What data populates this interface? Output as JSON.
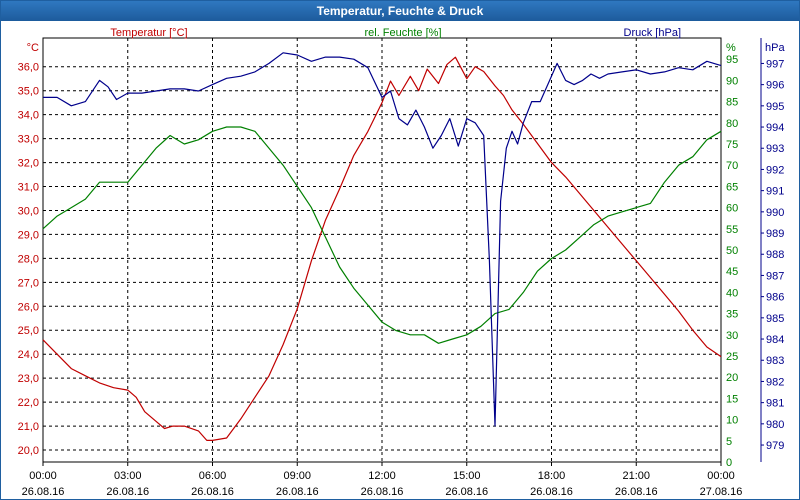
{
  "window": {
    "title": "Temperatur, Feuchte & Druck"
  },
  "chart_data": {
    "type": "line",
    "title": "Temperatur, Feuchte & Druck",
    "grid": true,
    "x_labels": [
      {
        "time": "00:00",
        "date": "26.08.16"
      },
      {
        "time": "03:00",
        "date": "26.08.16"
      },
      {
        "time": "06:00",
        "date": "26.08.16"
      },
      {
        "time": "09:00",
        "date": "26.08.16"
      },
      {
        "time": "12:00",
        "date": "26.08.16"
      },
      {
        "time": "15:00",
        "date": "26.08.16"
      },
      {
        "time": "18:00",
        "date": "26.08.16"
      },
      {
        "time": "21:00",
        "date": "26.08.16"
      },
      {
        "time": "00:00",
        "date": "27.08.16"
      }
    ],
    "xlim": [
      0,
      24
    ],
    "axes": {
      "temperature": {
        "unit": "°C",
        "label": "Temperatur [°C]",
        "color": "#c00000",
        "ylim": [
          19.5,
          37.2
        ],
        "ticks": [
          "20,0",
          "21,0",
          "22,0",
          "23,0",
          "24,0",
          "25,0",
          "26,0",
          "27,0",
          "28,0",
          "29,0",
          "30,0",
          "31,0",
          "32,0",
          "33,0",
          "34,0",
          "35,0",
          "36,0"
        ]
      },
      "humidity": {
        "unit": "%",
        "label": "rel. Feuchte [%]",
        "color": "#008000",
        "ylim": [
          0,
          100
        ],
        "ticks": [
          "0",
          "5",
          "10",
          "15",
          "20",
          "25",
          "30",
          "35",
          "40",
          "45",
          "50",
          "55",
          "60",
          "65",
          "70",
          "75",
          "80",
          "85",
          "90",
          "95"
        ]
      },
      "pressure": {
        "unit": "hPa",
        "label": "Druck [hPa]",
        "color": "#00008b",
        "ylim": [
          978.2,
          998.2
        ],
        "ticks": [
          "979",
          "980",
          "981",
          "982",
          "983",
          "984",
          "985",
          "986",
          "987",
          "988",
          "989",
          "990",
          "991",
          "992",
          "993",
          "994",
          "995",
          "996",
          "997"
        ]
      }
    },
    "series": [
      {
        "name": "Temperatur [°C]",
        "axis": "temperature",
        "color": "#c00000",
        "x": [
          0,
          0.5,
          1,
          1.5,
          2,
          2.5,
          3,
          3.3,
          3.6,
          4,
          4.3,
          4.6,
          5,
          5.5,
          5.8,
          6,
          6.5,
          7,
          7.5,
          8,
          8.5,
          9,
          9.5,
          10,
          10.5,
          11,
          11.5,
          12,
          12.3,
          12.6,
          13,
          13.3,
          13.6,
          14,
          14.3,
          14.6,
          15,
          15.3,
          15.6,
          16,
          16.3,
          16.6,
          17,
          17.5,
          18,
          18.5,
          19,
          19.5,
          20,
          20.5,
          21,
          21.5,
          22,
          22.5,
          23,
          23.5,
          24
        ],
        "y": [
          24.6,
          24.0,
          23.4,
          23.1,
          22.8,
          22.6,
          22.5,
          22.2,
          21.6,
          21.2,
          20.9,
          21.0,
          21.0,
          20.8,
          20.4,
          20.4,
          20.5,
          21.3,
          22.2,
          23.1,
          24.4,
          25.9,
          27.9,
          29.6,
          30.9,
          32.3,
          33.3,
          34.5,
          35.4,
          34.8,
          35.6,
          35.0,
          35.9,
          35.3,
          36.1,
          36.4,
          35.5,
          36.0,
          35.8,
          35.2,
          34.8,
          34.2,
          33.6,
          32.8,
          32.0,
          31.4,
          30.7,
          30.0,
          29.3,
          28.6,
          27.9,
          27.2,
          26.5,
          25.8,
          25.0,
          24.3,
          23.9
        ]
      },
      {
        "name": "rel. Feuchte [%]",
        "axis": "humidity",
        "color": "#008000",
        "x": [
          0,
          0.5,
          1,
          1.5,
          2,
          2.5,
          3,
          3.5,
          4,
          4.5,
          5,
          5.5,
          6,
          6.5,
          7,
          7.5,
          8,
          8.5,
          9,
          9.5,
          10,
          10.5,
          11,
          11.5,
          12,
          12.5,
          13,
          13.5,
          14,
          14.5,
          15,
          15.5,
          16,
          16.5,
          17,
          17.5,
          18,
          18.5,
          19,
          19.5,
          20,
          20.5,
          21,
          21.5,
          22,
          22.5,
          23,
          23.5,
          24
        ],
        "y": [
          55,
          58,
          60,
          62,
          66,
          66,
          66,
          70,
          74,
          77,
          75,
          76,
          78,
          79,
          79,
          78,
          74,
          70,
          65,
          60,
          53,
          46,
          41,
          37,
          33,
          31,
          30,
          30,
          28,
          29,
          30,
          32,
          35,
          36,
          40,
          45,
          48,
          50,
          53,
          56,
          58,
          59,
          60,
          61,
          66,
          70,
          72,
          76,
          78
        ]
      },
      {
        "name": "Druck [hPa]",
        "axis": "pressure",
        "color": "#00008b",
        "x": [
          0,
          0.5,
          1,
          1.5,
          2,
          2.3,
          2.6,
          3,
          3.5,
          4,
          4.5,
          5,
          5.5,
          6,
          6.5,
          7,
          7.5,
          8,
          8.5,
          9,
          9.5,
          10,
          10.5,
          11,
          11.5,
          12,
          12.3,
          12.6,
          12.9,
          13.2,
          13.5,
          13.8,
          14.1,
          14.4,
          14.7,
          15,
          15.3,
          15.6,
          15.8,
          16,
          16.2,
          16.4,
          16.6,
          16.8,
          17,
          17.3,
          17.6,
          17.9,
          18.2,
          18.5,
          18.8,
          19.1,
          19.4,
          19.7,
          20,
          20.5,
          21,
          21.5,
          22,
          22.5,
          23,
          23.5,
          24
        ],
        "y": [
          995.4,
          995.4,
          995.0,
          995.2,
          996.2,
          995.9,
          995.3,
          995.6,
          995.6,
          995.7,
          995.8,
          995.8,
          995.7,
          996.0,
          996.3,
          996.4,
          996.6,
          997.0,
          997.5,
          997.4,
          997.1,
          997.3,
          997.3,
          997.2,
          996.8,
          995.4,
          995.7,
          994.4,
          994.1,
          994.8,
          994.0,
          993.0,
          993.6,
          994.4,
          993.1,
          994.4,
          994.2,
          993.6,
          987.7,
          979.9,
          990.5,
          993.0,
          993.8,
          993.2,
          994.2,
          995.2,
          995.2,
          996.1,
          997.0,
          996.2,
          996.0,
          996.2,
          996.5,
          996.3,
          996.5,
          996.6,
          996.7,
          996.5,
          996.6,
          996.8,
          996.7,
          997.1,
          996.9
        ]
      }
    ]
  }
}
